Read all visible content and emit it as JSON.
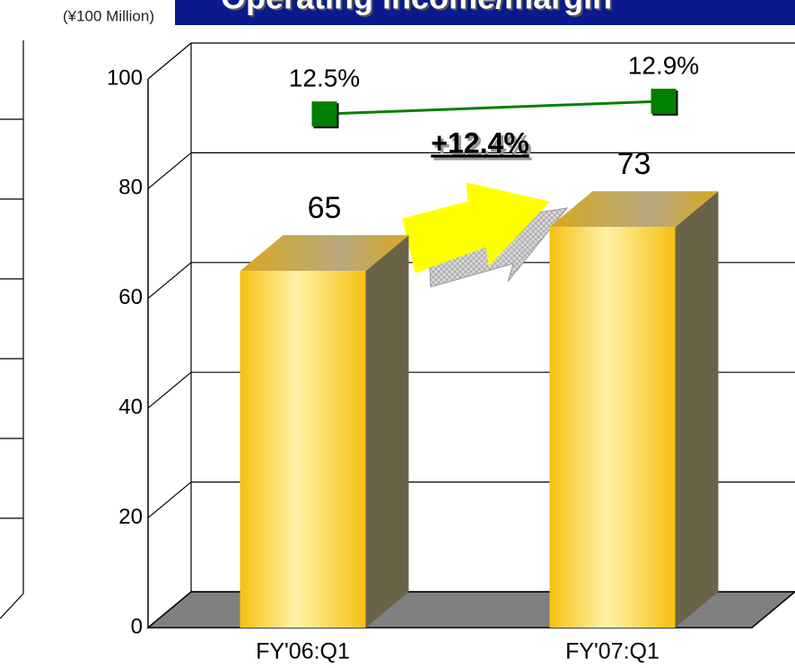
{
  "chart_data": {
    "type": "bar",
    "title": "Operating income/margin",
    "unit_label": "(¥100 Million)",
    "annotation": "+12.4%",
    "categories": [
      "FY'06:Q1",
      "FY'07:Q1"
    ],
    "series": [
      {
        "name": "Operating income",
        "type": "bar",
        "color": "#f5c518",
        "values": [
          65,
          73
        ]
      },
      {
        "name": "Operating margin",
        "type": "line",
        "axis": "y2",
        "color": "#008000",
        "values": [
          12.5,
          12.9
        ],
        "value_labels": [
          "12.5%",
          "12.9%"
        ]
      }
    ],
    "ylim": [
      0,
      100
    ],
    "yticks": [
      0,
      20,
      40,
      60,
      80,
      100
    ],
    "y2lim": [
      -3.6,
      13.6
    ],
    "grid": true
  }
}
